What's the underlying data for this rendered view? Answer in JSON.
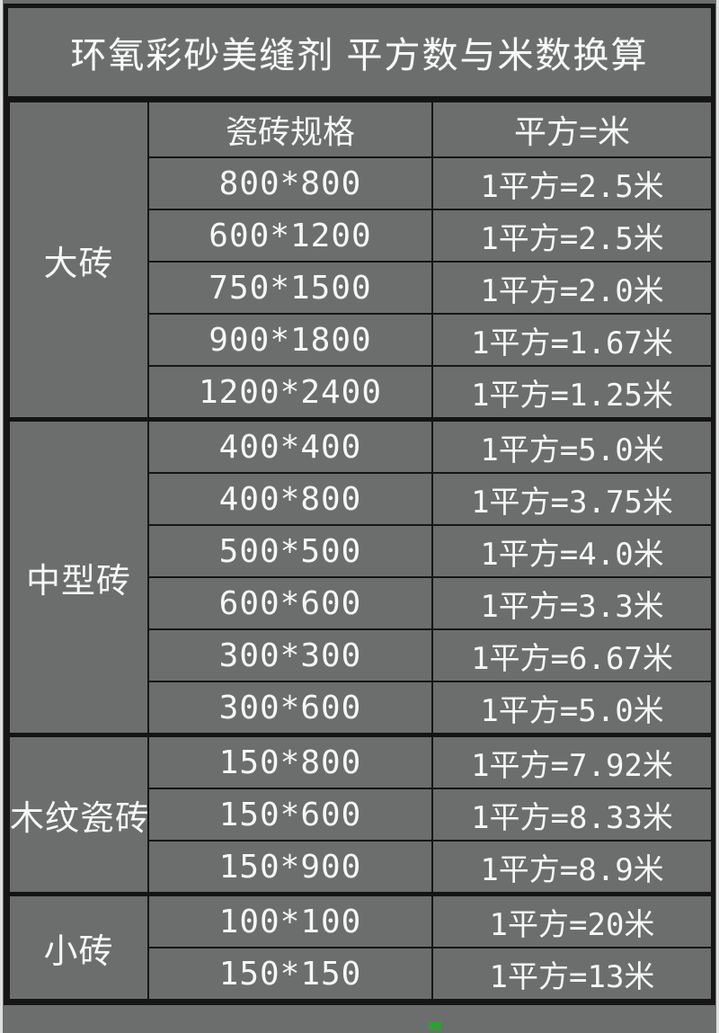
{
  "title": "环氧彩砂美缝剂 平方数与米数换算",
  "header": {
    "spec": "瓷砖规格",
    "conversion": "平方=米"
  },
  "groups": [
    {
      "label": "大砖",
      "rows": [
        {
          "spec": "800*800",
          "value": "1平方=2.5米"
        },
        {
          "spec": "600*1200",
          "value": "1平方=2.5米"
        },
        {
          "spec": "750*1500",
          "value": "1平方=2.0米"
        },
        {
          "spec": "900*1800",
          "value": "1平方=1.67米"
        },
        {
          "spec": "1200*2400",
          "value": "1平方=1.25米"
        }
      ]
    },
    {
      "label": "中型砖",
      "rows": [
        {
          "spec": "400*400",
          "value": "1平方=5.0米"
        },
        {
          "spec": "400*800",
          "value": "1平方=3.75米"
        },
        {
          "spec": "500*500",
          "value": "1平方=4.0米"
        },
        {
          "spec": "600*600",
          "value": "1平方=3.3米"
        },
        {
          "spec": "300*300",
          "value": "1平方=6.67米"
        },
        {
          "spec": "300*600",
          "value": "1平方=5.0米"
        }
      ]
    },
    {
      "label": "木纹瓷砖",
      "rows": [
        {
          "spec": "150*800",
          "value": "1平方=7.92米"
        },
        {
          "spec": "150*600",
          "value": "1平方=8.33米"
        },
        {
          "spec": "150*900",
          "value": "1平方=8.9米"
        }
      ]
    },
    {
      "label": "小砖",
      "rows": [
        {
          "spec": "100*100",
          "value": "1平方=20米"
        },
        {
          "spec": "150*150",
          "value": "1平方=13米"
        }
      ]
    }
  ],
  "colors": {
    "background": "#6b6e6c",
    "border": "#161616",
    "text": "#f6f6f6",
    "marker_green": "#2f9e36"
  }
}
